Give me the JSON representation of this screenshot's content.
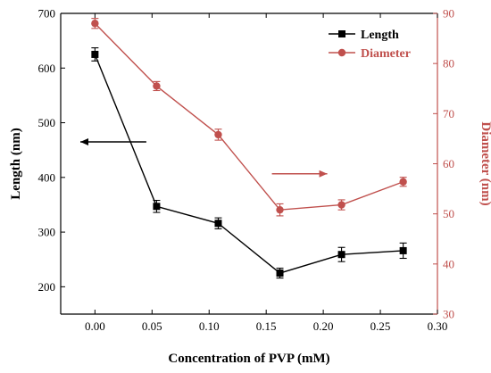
{
  "colors": {
    "length": "#000000",
    "diameter": "#c0504d",
    "axis_left": "#000000",
    "axis_right": "#c0504d"
  },
  "chart_data": {
    "type": "line",
    "x": [
      0.0,
      0.054,
      0.108,
      0.162,
      0.216,
      0.27
    ],
    "xlabel": "Concentration of PVP (mM)",
    "xlim": [
      -0.03,
      0.3
    ],
    "xticks": [
      "0.00",
      "0.05",
      "0.10",
      "0.15",
      "0.20",
      "0.25",
      "0.30"
    ],
    "xtick_values": [
      0.0,
      0.05,
      0.1,
      0.15,
      0.2,
      0.25,
      0.3
    ],
    "grid": false,
    "legend_position": "top-right",
    "y_left": {
      "label": "Length (nm)",
      "lim": [
        150,
        700
      ],
      "ticks": [
        "200",
        "300",
        "400",
        "500",
        "600",
        "700"
      ],
      "tick_values": [
        200,
        300,
        400,
        500,
        600,
        700
      ]
    },
    "y_right": {
      "label": "Diameter (nm)",
      "lim": [
        30,
        90
      ],
      "ticks": [
        "30",
        "40",
        "50",
        "60",
        "70",
        "80",
        "90"
      ],
      "tick_values": [
        30,
        40,
        50,
        60,
        70,
        80,
        90
      ]
    },
    "series": [
      {
        "name": "Length",
        "axis": "left",
        "marker": "square",
        "values": [
          625,
          347,
          316,
          225,
          259,
          266
        ],
        "errors": [
          12,
          11,
          10,
          9,
          13,
          14
        ]
      },
      {
        "name": "Diameter",
        "axis": "right",
        "marker": "circle",
        "values": [
          88.0,
          75.5,
          65.8,
          50.8,
          51.8,
          56.4
        ],
        "errors": [
          1.0,
          0.9,
          1.1,
          1.2,
          1.0,
          0.9
        ]
      }
    ],
    "annotations": [
      {
        "type": "arrow",
        "direction": "left",
        "points_to_axis": "left",
        "x": 0.045,
        "y_left": 465
      },
      {
        "type": "arrow",
        "direction": "right",
        "points_to_axis": "right",
        "x": 0.155,
        "y_right": 58
      }
    ]
  }
}
